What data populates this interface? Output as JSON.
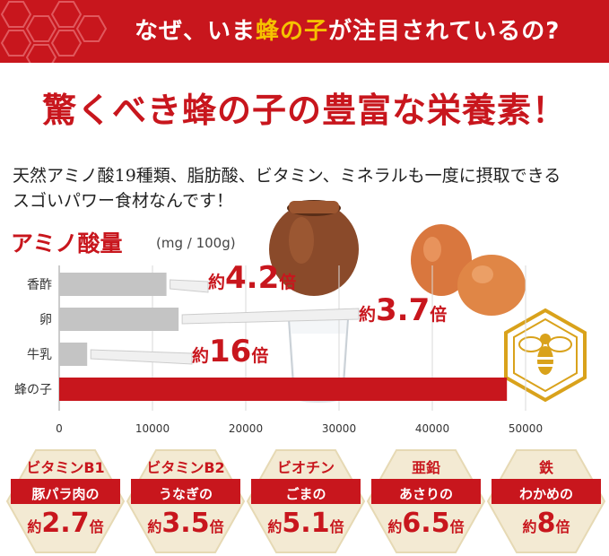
{
  "banner": {
    "text_before": "なぜ、いま",
    "text_highlight": "蜂の子",
    "text_after": "が注目されているの?"
  },
  "headline": "驚くべき蜂の子の豊富な栄養素！",
  "intro": {
    "line1": "天然アミノ酸19種類、脂肪酸、ビタミン、ミネラルも一度に摂取できる",
    "line2": "スゴいパワー食材なんです！"
  },
  "chart_data": {
    "type": "bar",
    "orientation": "horizontal",
    "title": "アミノ酸量",
    "unit": "(mg / 100g)",
    "categories": [
      "香酢",
      "卵",
      "牛乳",
      "蜂の子"
    ],
    "values": [
      11500,
      12800,
      3000,
      48000
    ],
    "xlim": [
      0,
      50000
    ],
    "xticks": [
      "0",
      "10000",
      "20000",
      "30000",
      "40000",
      "50000"
    ],
    "bar_colors": [
      "#c4c4c4",
      "#c4c4c4",
      "#c4c4c4",
      "#c8161d"
    ],
    "annotations": [
      {
        "prefix": "約",
        "value": "4.2",
        "suffix": "倍"
      },
      {
        "prefix": "約",
        "value": "3.7",
        "suffix": "倍"
      },
      {
        "prefix": "約",
        "value": "16",
        "suffix": "倍"
      }
    ]
  },
  "badges": [
    {
      "nutrient": "ビタミンB1",
      "food": "豚パラ肉の",
      "prefix": "約",
      "value": "2.7",
      "suffix": "倍"
    },
    {
      "nutrient": "ビタミンB2",
      "food": "うなぎの",
      "prefix": "約",
      "value": "3.5",
      "suffix": "倍"
    },
    {
      "nutrient": "ビオチン",
      "food": "ごまの",
      "prefix": "約",
      "value": "5.1",
      "suffix": "倍"
    },
    {
      "nutrient": "亜鉛",
      "food": "あさりの",
      "prefix": "約",
      "value": "6.5",
      "suffix": "倍"
    },
    {
      "nutrient": "鉄",
      "food": "わかめの",
      "prefix": "約",
      "value": "8",
      "suffix": "倍"
    }
  ],
  "colors": {
    "brand_red": "#c8161d",
    "honey_gold": "#f5c200",
    "gray_bar": "#c4c4c4"
  },
  "icons": [
    "honeycomb-pattern-icon",
    "bee-icon",
    "vinegar-pot-icon",
    "eggs-icon",
    "milk-glass-icon"
  ]
}
